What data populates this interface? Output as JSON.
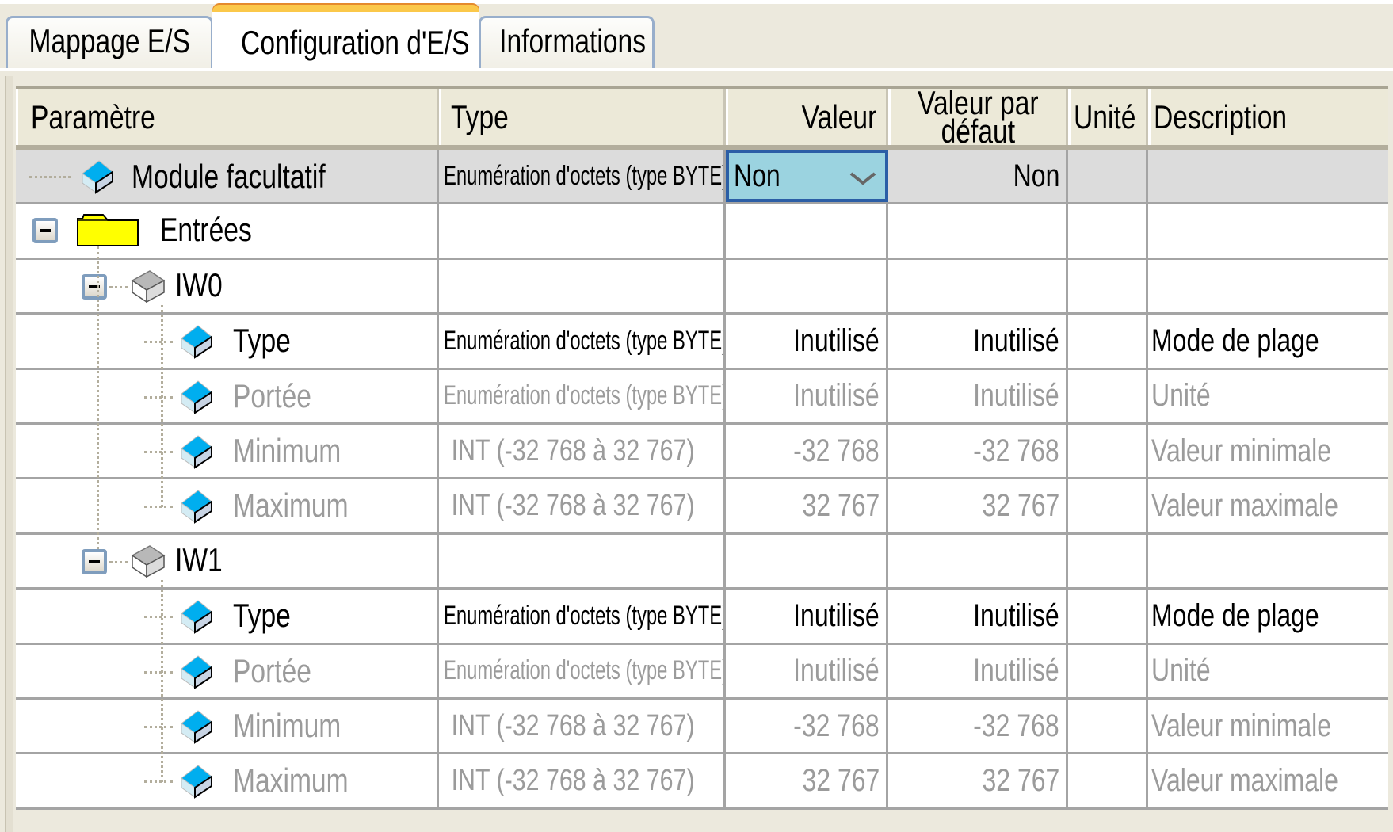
{
  "tabs": [
    {
      "label": "Mappage E/S",
      "active": false
    },
    {
      "label": "Configuration d'E/S",
      "active": true
    },
    {
      "label": "Informations",
      "active": false
    }
  ],
  "table": {
    "headers": {
      "param": "Paramètre",
      "type": "Type",
      "value": "Valeur",
      "default_line1": "Valeur par",
      "default_line2": "défaut",
      "unit": "Unité",
      "description": "Description"
    },
    "rows": [
      {
        "param": "Module facultatif",
        "kind": "module",
        "icon": "cube-blue-icon",
        "type": "Enumération d'octets (type BYTE)",
        "value": "Non",
        "default": "Non",
        "unit": "",
        "description": "",
        "editable": true,
        "disabled": false,
        "selected": true
      },
      {
        "param": "Entrées",
        "kind": "folder",
        "icon": "folder-icon",
        "type": "",
        "value": "",
        "default": "",
        "unit": "",
        "description": "",
        "disabled": false
      },
      {
        "param": "IW0",
        "kind": "group",
        "icon": "cube-grey-icon",
        "type": "",
        "value": "",
        "default": "",
        "unit": "",
        "description": "",
        "disabled": false
      },
      {
        "param": "Type",
        "kind": "leaf",
        "icon": "cube-blue-icon",
        "type": "Enumération d'octets (type BYTE)",
        "value": "Inutilisé",
        "default": "Inutilisé",
        "unit": "",
        "description": "Mode de plage",
        "disabled": false
      },
      {
        "param": "Portée",
        "kind": "leaf",
        "icon": "cube-blue-icon",
        "type": "Enumération d'octets (type BYTE)",
        "value": "Inutilisé",
        "default": "Inutilisé",
        "unit": "",
        "description": "Unité",
        "disabled": true
      },
      {
        "param": "Minimum",
        "kind": "leaf",
        "icon": "cube-blue-icon",
        "type": "INT (-32 768 à 32 767)",
        "value": "-32 768",
        "default": "-32 768",
        "unit": "",
        "description": "Valeur minimale",
        "disabled": true
      },
      {
        "param": "Maximum",
        "kind": "leaf",
        "icon": "cube-blue-icon",
        "type": "INT (-32 768 à 32 767)",
        "value": "32 767",
        "default": "32 767",
        "unit": "",
        "description": "Valeur maximale",
        "disabled": true
      },
      {
        "param": "IW1",
        "kind": "group",
        "icon": "cube-grey-icon",
        "type": "",
        "value": "",
        "default": "",
        "unit": "",
        "description": "",
        "disabled": false
      },
      {
        "param": "Type",
        "kind": "leaf",
        "icon": "cube-blue-icon",
        "type": "Enumération d'octets (type BYTE)",
        "value": "Inutilisé",
        "default": "Inutilisé",
        "unit": "",
        "description": "Mode de plage",
        "disabled": false
      },
      {
        "param": "Portée",
        "kind": "leaf",
        "icon": "cube-blue-icon",
        "type": "Enumération d'octets (type BYTE)",
        "value": "Inutilisé",
        "default": "Inutilisé",
        "unit": "",
        "description": "Unité",
        "disabled": true
      },
      {
        "param": "Minimum",
        "kind": "leaf",
        "icon": "cube-blue-icon",
        "type": "INT (-32 768 à 32 767)",
        "value": "-32 768",
        "default": "-32 768",
        "unit": "",
        "description": "Valeur minimale",
        "disabled": true
      },
      {
        "param": "Maximum",
        "kind": "leaf",
        "icon": "cube-blue-icon",
        "type": "INT (-32 768 à 32 767)",
        "value": "32 767",
        "default": "32 767",
        "unit": "",
        "description": "Valeur maximale",
        "disabled": true
      }
    ]
  },
  "colors": {
    "active_tab_accent": "#fbc84a",
    "dropdown_bg": "#9bd3e0",
    "dropdown_border": "#2b5ea6",
    "folder": "#ffff00",
    "cube_top": "#00aeef",
    "disabled_text": "#9b9b9b"
  }
}
